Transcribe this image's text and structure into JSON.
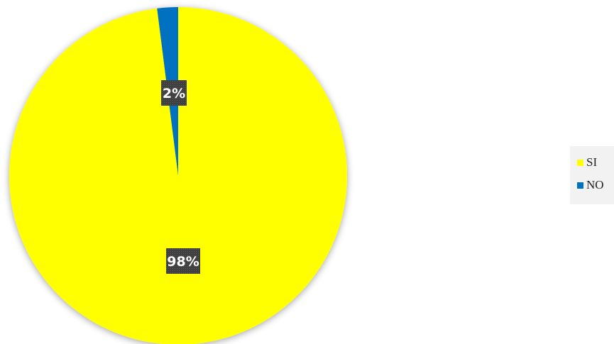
{
  "chart_data": {
    "type": "pie",
    "categories": [
      "SI",
      "NO"
    ],
    "values": [
      98,
      2
    ],
    "data_labels": [
      "98%",
      "2%"
    ],
    "colors": [
      "#ffff00",
      "#0070c0"
    ],
    "label_box_color": "#404040",
    "legend_position": "right",
    "legend": [
      {
        "label": "SI",
        "color": "#ffff00"
      },
      {
        "label": "NO",
        "color": "#0070c0"
      }
    ]
  }
}
